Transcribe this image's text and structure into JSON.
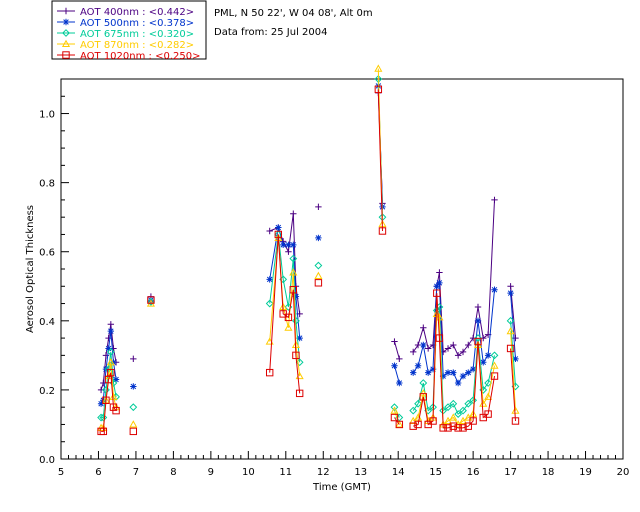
{
  "header": {
    "line1": "PML, N 50 22', W 04 08', Alt 0m",
    "line2": "Data from: 25 Jul 2004"
  },
  "chart_data": {
    "type": "scatter",
    "xlabel": "Time (GMT)",
    "ylabel": "Aerosol Optical Thickness",
    "xlim": [
      5,
      20
    ],
    "ylim": [
      0,
      1.1
    ],
    "xticks": [
      "5",
      "6",
      "7",
      "8",
      "9",
      "10",
      "11",
      "12",
      "13",
      "14",
      "15",
      "16",
      "17",
      "18",
      "19",
      "20"
    ],
    "yticks": [
      "0.0",
      "0.2",
      "0.4",
      "0.6",
      "0.8",
      "1.0"
    ],
    "grid": false,
    "legend_position": "top-left",
    "series": [
      {
        "name": "AOT  400nm : <0.442>",
        "color": "#4b0082",
        "marker": "plus",
        "segments": [
          [
            [
              6.07,
              0.2
            ],
            [
              6.13,
              0.22
            ],
            [
              6.2,
              0.3
            ],
            [
              6.27,
              0.35
            ],
            [
              6.33,
              0.39
            ],
            [
              6.4,
              0.32
            ],
            [
              6.47,
              0.28
            ]
          ],
          [
            [
              10.57,
              0.66
            ],
            [
              10.8,
              0.67
            ],
            [
              10.93,
              0.63
            ],
            [
              11.07,
              0.6
            ],
            [
              11.2,
              0.71
            ],
            [
              11.27,
              0.5
            ],
            [
              11.37,
              0.42
            ]
          ],
          [
            [
              13.47,
              1.06
            ],
            [
              13.58,
              0.74
            ]
          ],
          [
            [
              13.9,
              0.34
            ],
            [
              14.03,
              0.29
            ]
          ],
          [
            [
              14.4,
              0.31
            ],
            [
              14.53,
              0.33
            ],
            [
              14.67,
              0.38
            ],
            [
              14.8,
              0.32
            ],
            [
              14.93,
              0.33
            ],
            [
              15.03,
              0.5
            ],
            [
              15.1,
              0.54
            ],
            [
              15.2,
              0.31
            ],
            [
              15.33,
              0.32
            ],
            [
              15.47,
              0.33
            ],
            [
              15.6,
              0.3
            ],
            [
              15.73,
              0.31
            ],
            [
              15.87,
              0.33
            ],
            [
              16.0,
              0.35
            ],
            [
              16.13,
              0.44
            ],
            [
              16.27,
              0.35
            ],
            [
              16.4,
              0.36
            ],
            [
              16.57,
              0.75
            ]
          ],
          [
            [
              17.0,
              0.5
            ],
            [
              17.13,
              0.35
            ]
          ]
        ],
        "points": [
          [
            6.93,
            0.29
          ],
          [
            7.4,
            0.47
          ],
          [
            11.87,
            0.73
          ]
        ]
      },
      {
        "name": "AOT  500nm : <0.378>",
        "color": "#0033cc",
        "marker": "asterisk",
        "segments": [
          [
            [
              6.07,
              0.16
            ],
            [
              6.13,
              0.17
            ],
            [
              6.2,
              0.26
            ],
            [
              6.27,
              0.32
            ],
            [
              6.33,
              0.37
            ],
            [
              6.4,
              0.28
            ],
            [
              6.47,
              0.23
            ]
          ],
          [
            [
              10.57,
              0.52
            ],
            [
              10.8,
              0.67
            ],
            [
              10.93,
              0.62
            ],
            [
              11.07,
              0.62
            ],
            [
              11.2,
              0.62
            ],
            [
              11.27,
              0.47
            ],
            [
              11.37,
              0.35
            ]
          ],
          [
            [
              13.47,
              1.08
            ],
            [
              13.58,
              0.73
            ]
          ],
          [
            [
              13.9,
              0.27
            ],
            [
              14.03,
              0.22
            ]
          ],
          [
            [
              14.4,
              0.25
            ],
            [
              14.53,
              0.27
            ],
            [
              14.67,
              0.33
            ],
            [
              14.8,
              0.25
            ],
            [
              14.93,
              0.26
            ],
            [
              15.03,
              0.5
            ],
            [
              15.1,
              0.51
            ],
            [
              15.2,
              0.24
            ],
            [
              15.33,
              0.25
            ],
            [
              15.47,
              0.25
            ],
            [
              15.6,
              0.22
            ],
            [
              15.73,
              0.24
            ],
            [
              15.87,
              0.25
            ],
            [
              16.0,
              0.26
            ],
            [
              16.13,
              0.4
            ],
            [
              16.27,
              0.28
            ],
            [
              16.4,
              0.3
            ],
            [
              16.57,
              0.49
            ]
          ],
          [
            [
              17.0,
              0.48
            ],
            [
              17.13,
              0.29
            ]
          ]
        ],
        "points": [
          [
            6.93,
            0.21
          ],
          [
            7.4,
            0.46
          ],
          [
            11.87,
            0.64
          ]
        ]
      },
      {
        "name": "AOT  675nm : <0.320>",
        "color": "#00cc99",
        "marker": "diamond",
        "segments": [
          [
            [
              6.07,
              0.12
            ],
            [
              6.13,
              0.12
            ],
            [
              6.2,
              0.2
            ],
            [
              6.27,
              0.26
            ],
            [
              6.33,
              0.31
            ],
            [
              6.4,
              0.22
            ],
            [
              6.47,
              0.18
            ]
          ],
          [
            [
              10.57,
              0.45
            ],
            [
              10.8,
              0.65
            ],
            [
              10.93,
              0.52
            ],
            [
              11.07,
              0.44
            ],
            [
              11.2,
              0.58
            ],
            [
              11.27,
              0.4
            ],
            [
              11.37,
              0.28
            ]
          ],
          [
            [
              13.47,
              1.1
            ],
            [
              13.58,
              0.7
            ]
          ],
          [
            [
              13.9,
              0.15
            ],
            [
              14.03,
              0.12
            ]
          ],
          [
            [
              14.4,
              0.14
            ],
            [
              14.53,
              0.16
            ],
            [
              14.67,
              0.22
            ],
            [
              14.8,
              0.14
            ],
            [
              14.93,
              0.15
            ],
            [
              15.03,
              0.43
            ],
            [
              15.1,
              0.44
            ],
            [
              15.2,
              0.14
            ],
            [
              15.33,
              0.15
            ],
            [
              15.47,
              0.16
            ],
            [
              15.6,
              0.13
            ],
            [
              15.73,
              0.14
            ],
            [
              15.87,
              0.16
            ],
            [
              16.0,
              0.17
            ],
            [
              16.13,
              0.35
            ],
            [
              16.27,
              0.2
            ],
            [
              16.4,
              0.22
            ],
            [
              16.57,
              0.3
            ]
          ],
          [
            [
              17.0,
              0.4
            ],
            [
              17.13,
              0.21
            ]
          ]
        ],
        "points": [
          [
            6.93,
            0.15
          ],
          [
            7.4,
            0.455
          ],
          [
            11.87,
            0.56
          ]
        ]
      },
      {
        "name": "AOT  870nm : <0.282>",
        "color": "#ffcc00",
        "marker": "triangle",
        "segments": [
          [
            [
              6.07,
              0.09
            ],
            [
              6.13,
              0.09
            ],
            [
              6.2,
              0.17
            ],
            [
              6.27,
              0.24
            ],
            [
              6.33,
              0.28
            ],
            [
              6.4,
              0.18
            ],
            [
              6.47,
              0.15
            ]
          ],
          [
            [
              10.57,
              0.34
            ],
            [
              10.8,
              0.64
            ],
            [
              10.93,
              0.44
            ],
            [
              11.07,
              0.38
            ],
            [
              11.2,
              0.54
            ],
            [
              11.27,
              0.33
            ],
            [
              11.37,
              0.24
            ]
          ],
          [
            [
              13.47,
              1.13
            ],
            [
              13.58,
              0.68
            ]
          ],
          [
            [
              13.9,
              0.14
            ],
            [
              14.03,
              0.1
            ]
          ],
          [
            [
              14.4,
              0.11
            ],
            [
              14.53,
              0.12
            ],
            [
              14.67,
              0.19
            ],
            [
              14.8,
              0.11
            ],
            [
              14.93,
              0.12
            ],
            [
              15.03,
              0.42
            ],
            [
              15.1,
              0.41
            ],
            [
              15.2,
              0.1
            ],
            [
              15.33,
              0.11
            ],
            [
              15.47,
              0.12
            ],
            [
              15.6,
              0.1
            ],
            [
              15.73,
              0.11
            ],
            [
              15.87,
              0.12
            ],
            [
              16.0,
              0.13
            ],
            [
              16.13,
              0.33
            ],
            [
              16.27,
              0.16
            ],
            [
              16.4,
              0.18
            ],
            [
              16.57,
              0.27
            ]
          ],
          [
            [
              17.0,
              0.37
            ],
            [
              17.13,
              0.14
            ]
          ]
        ],
        "points": [
          [
            6.93,
            0.1
          ],
          [
            7.4,
            0.45
          ],
          [
            11.87,
            0.53
          ]
        ]
      },
      {
        "name": "AOT 1020nm : <0.250>",
        "color": "#dd0000",
        "marker": "square",
        "segments": [
          [
            [
              6.07,
              0.08
            ],
            [
              6.13,
              0.08
            ],
            [
              6.2,
              0.17
            ],
            [
              6.27,
              0.23
            ],
            [
              6.33,
              0.25
            ],
            [
              6.4,
              0.15
            ],
            [
              6.47,
              0.14
            ]
          ],
          [
            [
              10.57,
              0.25
            ],
            [
              10.8,
              0.65
            ],
            [
              10.93,
              0.42
            ],
            [
              11.07,
              0.41
            ],
            [
              11.2,
              0.49
            ],
            [
              11.27,
              0.3
            ],
            [
              11.37,
              0.19
            ]
          ],
          [
            [
              13.47,
              1.07
            ],
            [
              13.58,
              0.66
            ]
          ],
          [
            [
              13.9,
              0.12
            ],
            [
              14.03,
              0.1
            ]
          ],
          [
            [
              14.4,
              0.095
            ],
            [
              14.53,
              0.1
            ],
            [
              14.67,
              0.18
            ],
            [
              14.8,
              0.1
            ],
            [
              14.93,
              0.11
            ],
            [
              15.03,
              0.48
            ],
            [
              15.1,
              0.35
            ],
            [
              15.2,
              0.09
            ],
            [
              15.33,
              0.09
            ],
            [
              15.47,
              0.095
            ],
            [
              15.6,
              0.09
            ],
            [
              15.73,
              0.09
            ],
            [
              15.87,
              0.095
            ],
            [
              16.0,
              0.11
            ],
            [
              16.13,
              0.34
            ],
            [
              16.27,
              0.12
            ],
            [
              16.4,
              0.13
            ],
            [
              16.57,
              0.24
            ]
          ],
          [
            [
              17.0,
              0.32
            ],
            [
              17.13,
              0.11
            ]
          ]
        ],
        "points": [
          [
            6.93,
            0.08
          ],
          [
            7.4,
            0.46
          ],
          [
            11.87,
            0.51
          ]
        ]
      }
    ]
  }
}
